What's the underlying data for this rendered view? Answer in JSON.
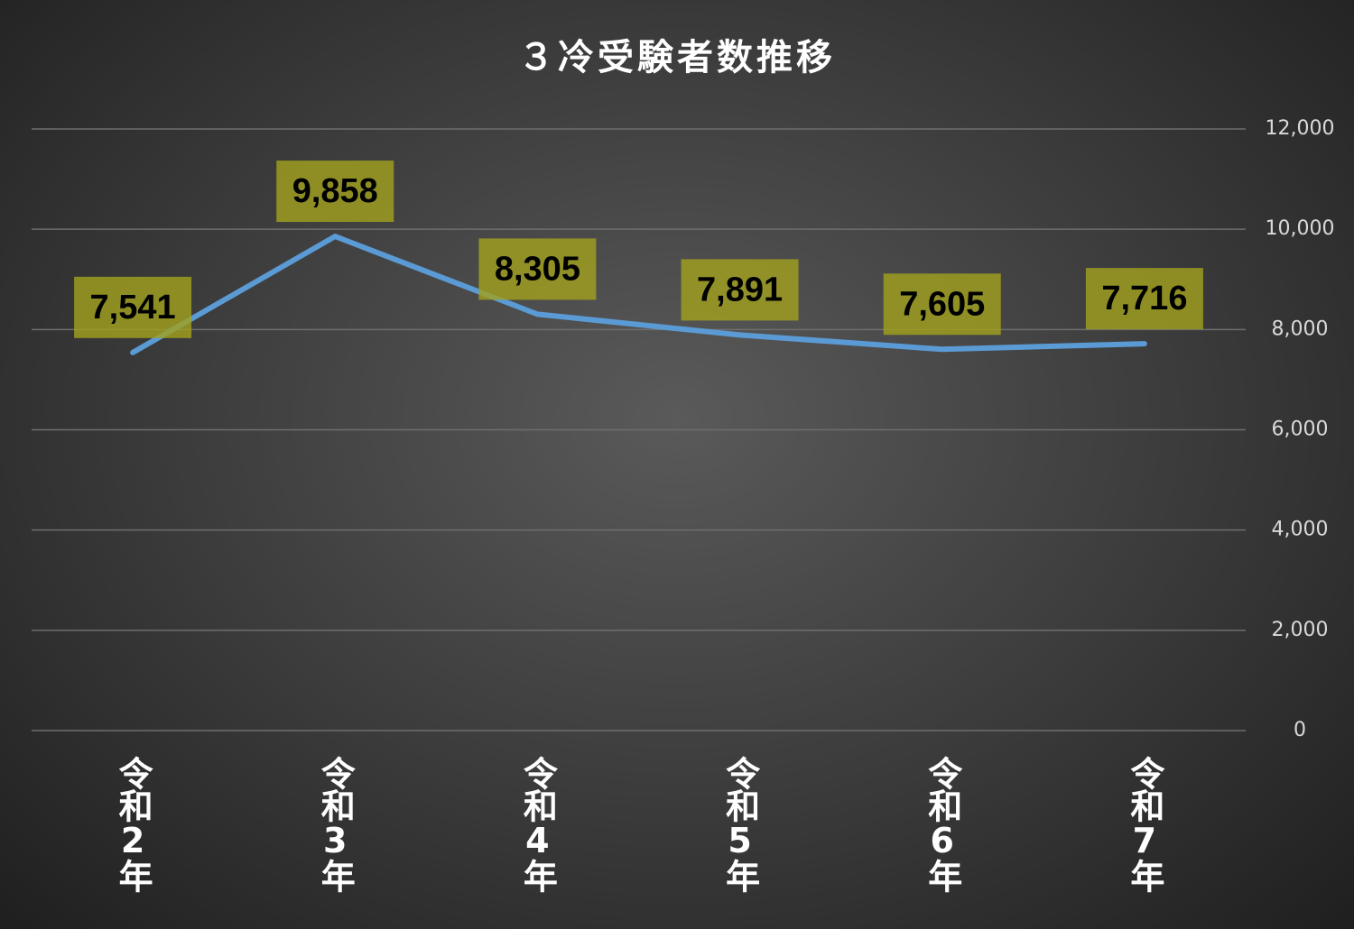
{
  "chart_data": {
    "type": "line",
    "title": "３冷受験者数推移",
    "categories": [
      "令和2年",
      "令和3年",
      "令和4年",
      "令和5年",
      "令和6年",
      "令和7年"
    ],
    "values": [
      7541,
      9858,
      8305,
      7891,
      7605,
      7716
    ],
    "value_labels": [
      "7,541",
      "9,858",
      "8,305",
      "7,891",
      "7,605",
      "7,716"
    ],
    "color": "#5b9bd5",
    "ylim": [
      0,
      12000
    ],
    "yticks": [
      0,
      {
        "value": 2000,
        "label": "2,000"
      },
      {
        "value": 4000,
        "label": "4,000"
      },
      {
        "value": 6000,
        "label": "6,000"
      },
      {
        "value": 8000,
        "label": "8,000"
      },
      {
        "value": 10000,
        "label": "10,000"
      },
      {
        "value": 12000,
        "label": "12,000"
      }
    ],
    "grid": true
  }
}
